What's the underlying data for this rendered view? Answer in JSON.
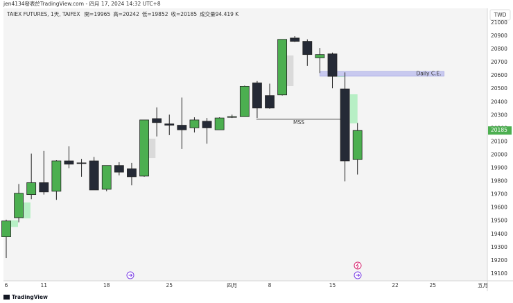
{
  "header": {
    "byline": "jen4134發表於TradingView.com - 四月 17, 2024 14:32 UTC+8"
  },
  "footer": {
    "logo": "TradingView"
  },
  "chart_data": {
    "type": "candlestick",
    "title": "TAIEX FUTURES, 1天, TAIFEX",
    "currency": "TWD",
    "ohlc_labels": [
      "開=",
      "高=",
      "低=",
      "收="
    ],
    "volume_label": "成交量94.419 K",
    "open": [
      19380,
      19525,
      19700,
      19790,
      19725,
      19955,
      19940,
      19955,
      19740,
      19920,
      19895,
      19840,
      20275,
      20235,
      20225,
      20205,
      20255,
      20190,
      20290,
      20290,
      20545,
      20450,
      20455,
      20885,
      20860,
      20735,
      20765,
      20500,
      19965
    ],
    "high": [
      19510,
      19780,
      20010,
      20030,
      19960,
      20065,
      19970,
      19985,
      19920,
      19945,
      19940,
      20265,
      20360,
      20305,
      20435,
      20285,
      20280,
      20285,
      20305,
      20525,
      20560,
      20540,
      20875,
      20900,
      20875,
      20810,
      20775,
      20625,
      20242
    ],
    "low": [
      19220,
      19490,
      19665,
      19700,
      19660,
      19900,
      19835,
      19735,
      19725,
      19845,
      19770,
      19835,
      20140,
      20150,
      20045,
      20170,
      20085,
      20190,
      20280,
      20290,
      20280,
      20350,
      20450,
      20855,
      20675,
      20620,
      20505,
      19800,
      19852
    ],
    "close": [
      19500,
      19710,
      19790,
      19720,
      19955,
      19930,
      19935,
      19735,
      19920,
      19870,
      19835,
      20265,
      20245,
      20225,
      20190,
      20265,
      20205,
      20280,
      20290,
      20520,
      20355,
      20355,
      20875,
      20860,
      20760,
      20760,
      20595,
      19955,
      20185
    ],
    "up_color": "#4caf50",
    "down_color": "#252a36",
    "xlim": [
      -0.22,
      38.35
    ],
    "xticks": [
      {
        "value": 0,
        "label": "6"
      },
      {
        "value": 3,
        "label": "11"
      },
      {
        "value": 8,
        "label": "18"
      },
      {
        "value": 13,
        "label": "25"
      },
      {
        "value": 18,
        "label": "四月"
      },
      {
        "value": 21,
        "label": "8"
      },
      {
        "value": 26,
        "label": "15"
      },
      {
        "value": 31,
        "label": "22"
      },
      {
        "value": 34,
        "label": "25"
      },
      {
        "value": 38,
        "label": "五月"
      }
    ],
    "ylim": [
      19047,
      21110
    ],
    "yticks": [
      19100,
      19200,
      19300,
      19400,
      19500,
      19600,
      19700,
      19800,
      19900,
      20000,
      20100,
      20200,
      20300,
      20400,
      20500,
      20600,
      20700,
      20800,
      20900,
      21000
    ],
    "zones": [
      {
        "x": [
          0.28,
          0.94
        ],
        "values": [
          19455,
          19505
        ],
        "color": "#b7efc5"
      },
      {
        "x": [
          1.27,
          1.93
        ],
        "values": [
          19520,
          19640
        ],
        "color": "#b7efc5"
      },
      {
        "x": [
          11.2,
          11.9
        ],
        "values": [
          19976,
          20123
        ],
        "color": "#dadada"
      },
      {
        "x": [
          22.3,
          22.9
        ],
        "values": [
          20522,
          20753
        ],
        "color": "#dadada"
      },
      {
        "x": [
          26.4,
          26.95
        ],
        "values": [
          20590,
          20632
        ],
        "color": "#b7efc5"
      },
      {
        "x": [
          27.4,
          28.0
        ],
        "values": [
          20239,
          20459
        ],
        "color": "#b7efc5"
      }
    ],
    "annotations": [
      {
        "text": "Daily C.E.",
        "x": [
          25,
          34.9
        ],
        "values": [
          20596,
          20632
        ],
        "color": "#c8c9ef"
      },
      {
        "text": "MSS",
        "x": [
          19.94,
          26.7
        ],
        "value": 20270
      }
    ]
  }
}
